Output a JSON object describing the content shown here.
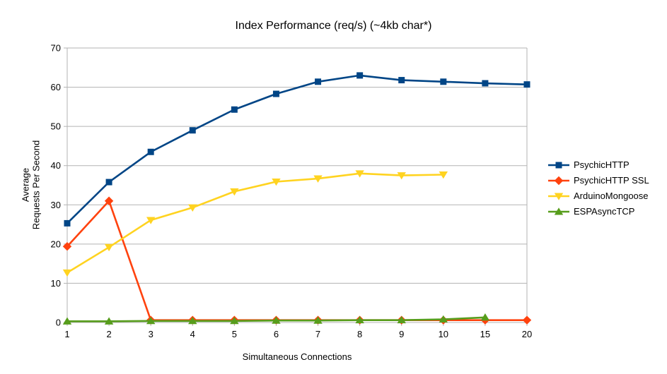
{
  "title": "Index Performance (req/s) (~4kb char*)",
  "colors": {
    "background": "#ffffff",
    "grid": "#b3b3b3",
    "axis": "#b3b3b3",
    "text": "#000000",
    "series_blue": "#004586",
    "series_red": "#ff420e",
    "series_yellow": "#ffd320",
    "series_green": "#579d1c"
  },
  "chart_data": {
    "type": "line",
    "title": "Index Performance (req/s) (~4kb char*)",
    "xlabel": "Simultaneous Connections",
    "ylabel_lines": [
      "Average",
      "Requests Per Second"
    ],
    "categories": [
      "1",
      "2",
      "3",
      "4",
      "5",
      "6",
      "7",
      "8",
      "9",
      "10",
      "15",
      "20"
    ],
    "y_ticks": [
      0,
      10,
      20,
      30,
      40,
      50,
      60,
      70
    ],
    "ylim": [
      0,
      70
    ],
    "grid": true,
    "legend_position": "right",
    "series": [
      {
        "name": "PsychicHTTP",
        "color": "#004586",
        "marker": "square",
        "values": [
          25.3,
          35.8,
          43.5,
          49.0,
          54.3,
          58.3,
          61.4,
          63.0,
          61.8,
          61.4,
          61.0,
          60.7
        ]
      },
      {
        "name": "PsychicHTTP SSL",
        "color": "#ff420e",
        "marker": "diamond",
        "values": [
          19.4,
          31.0,
          0.6,
          0.6,
          0.6,
          0.6,
          0.6,
          0.6,
          0.6,
          0.6,
          0.6,
          0.6
        ]
      },
      {
        "name": "ArduinoMongoose",
        "color": "#ffd320",
        "marker": "triangle-down",
        "values": [
          12.7,
          19.2,
          26.1,
          29.3,
          33.4,
          35.9,
          36.7,
          38.0,
          37.5,
          37.7,
          null,
          null
        ]
      },
      {
        "name": "ESPAsyncTCP",
        "color": "#579d1c",
        "marker": "triangle-up",
        "values": [
          0.3,
          0.3,
          0.4,
          0.4,
          0.4,
          0.5,
          0.5,
          0.6,
          0.6,
          0.8,
          1.3,
          null
        ]
      }
    ]
  }
}
